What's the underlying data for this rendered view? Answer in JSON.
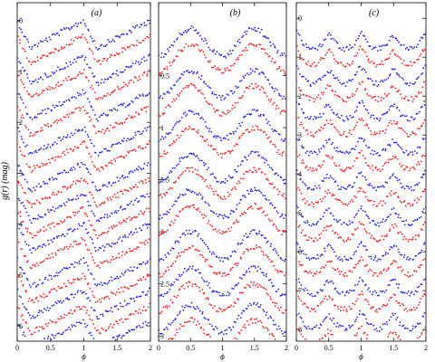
{
  "figure": {
    "ylabel": "g(r) (mag)",
    "xlabel": "ϕ",
    "colors": {
      "g_band": "#2222dd",
      "r_band": "#ee2222",
      "axis": "#000000"
    }
  },
  "chart_data": [
    {
      "type": "scatter",
      "panel_label": "(a)",
      "xlabel": "ϕ",
      "xlim": [
        0,
        2
      ],
      "ylim": [
        6.3,
        -0.35
      ],
      "y_inverted": true,
      "xticks": [
        0,
        0.5,
        1,
        1.5,
        2
      ],
      "xtick_labels": [
        "0",
        "0.5",
        "1",
        "1.5",
        "2"
      ],
      "yticks": [
        0,
        1,
        2,
        3,
        4,
        5,
        6
      ],
      "ytick_labels": [
        "0",
        "1",
        "2",
        "3",
        "4",
        "5",
        "6"
      ],
      "curve_shape": "sawtooth",
      "series": [
        {
          "band": "g",
          "offsets": [
            0.0,
            0.7,
            1.4,
            2.1,
            2.8,
            3.4,
            4.0,
            4.7,
            5.3,
            5.9
          ]
        },
        {
          "band": "r",
          "offsets": [
            0.3,
            1.0,
            1.7,
            2.4,
            3.1,
            3.7,
            4.3,
            5.0,
            5.6
          ]
        }
      ]
    },
    {
      "type": "scatter",
      "panel_label": "(b)",
      "xlabel": "ϕ",
      "xlim": [
        0,
        2
      ],
      "ylim": [
        3.05,
        -0.2
      ],
      "y_inverted": true,
      "xticks": [
        0,
        0.5,
        1,
        1.5,
        2
      ],
      "xtick_labels": [
        "0",
        "0.5",
        "1",
        "1.5",
        "2"
      ],
      "yticks": [
        0.5,
        1,
        1.5,
        2,
        2.5,
        3
      ],
      "ytick_labels": [
        "0.5",
        "1",
        "1.5",
        "2",
        "2.5",
        "3"
      ],
      "curve_shape": "sinusoid",
      "series": [
        {
          "band": "g",
          "offsets": [
            0.05,
            0.45,
            0.85,
            1.25,
            1.6,
            2.0,
            2.35,
            2.7
          ]
        },
        {
          "band": "r",
          "offsets": [
            0.2,
            0.6,
            1.0,
            1.4,
            1.75,
            2.15,
            2.5,
            2.85
          ]
        }
      ]
    },
    {
      "type": "scatter",
      "panel_label": "(c)",
      "xlabel": "ϕ",
      "xlim": [
        0,
        2
      ],
      "ylim": [
        8.3,
        -0.4
      ],
      "y_inverted": true,
      "xticks": [
        0,
        0.5,
        1,
        1.5,
        2
      ],
      "xtick_labels": [
        "0",
        "0.5",
        "1",
        "1.5",
        "2"
      ],
      "yticks": [
        0,
        1,
        2,
        3,
        4,
        5,
        6,
        7,
        8
      ],
      "ytick_labels": [
        "0",
        "1",
        "2",
        "3",
        "4",
        "5",
        "6",
        "7",
        "8"
      ],
      "curve_shape": "eclipsing",
      "series": [
        {
          "band": "g",
          "offsets": [
            0.1,
            1.0,
            1.9,
            2.8,
            3.7,
            4.6,
            5.5,
            6.4,
            7.3
          ]
        },
        {
          "band": "r",
          "offsets": [
            0.5,
            1.4,
            2.3,
            3.2,
            4.1,
            5.0,
            5.9,
            6.8,
            7.7
          ]
        }
      ]
    }
  ]
}
